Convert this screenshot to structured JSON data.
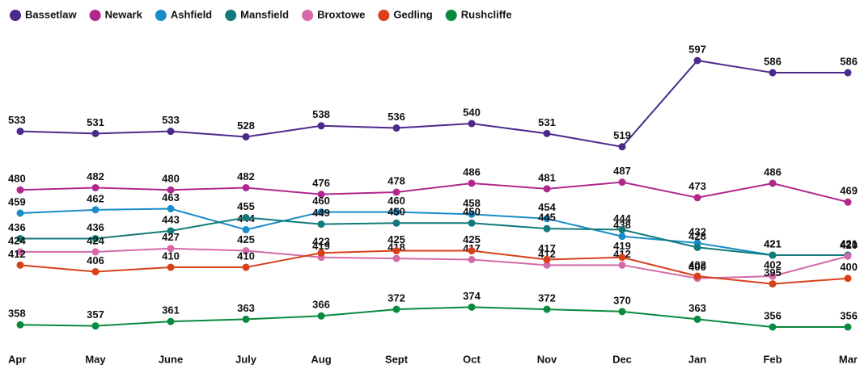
{
  "chart_data": {
    "type": "line",
    "categories": [
      "Apr",
      "May",
      "June",
      "July",
      "Aug",
      "Sept",
      "Oct",
      "Nov",
      "Dec",
      "Jan",
      "Feb",
      "Mar"
    ],
    "legend": "top-left",
    "series": [
      {
        "name": "Bassetlaw",
        "color": "#4b2a8c",
        "values": [
          533,
          531,
          533,
          528,
          538,
          536,
          540,
          531,
          519,
          597,
          586,
          586
        ]
      },
      {
        "name": "Newark",
        "color": "#b0288c",
        "values": [
          480,
          482,
          480,
          482,
          476,
          478,
          486,
          481,
          487,
          473,
          486,
          469
        ]
      },
      {
        "name": "Ashfield",
        "color": "#1a8cc8",
        "values": [
          459,
          462,
          463,
          444,
          460,
          460,
          458,
          454,
          438,
          432,
          421,
          421
        ]
      },
      {
        "name": "Mansfield",
        "color": "#127a7a",
        "values": [
          436,
          436,
          443,
          455,
          449,
          450,
          450,
          445,
          444,
          428,
          421,
          421
        ]
      },
      {
        "name": "Broxtowe",
        "color": "#d46aa8",
        "values": [
          424,
          424,
          427,
          425,
          419,
          418,
          417,
          412,
          412,
          400,
          402,
          420
        ]
      },
      {
        "name": "Gedling",
        "color": "#d8401a",
        "values": [
          412,
          406,
          410,
          410,
          423,
          425,
          425,
          417,
          419,
          402,
          395,
          400
        ]
      },
      {
        "name": "Rushcliffe",
        "color": "#0a8a3e",
        "values": [
          358,
          357,
          361,
          363,
          366,
          372,
          374,
          372,
          370,
          363,
          356,
          356
        ]
      }
    ]
  }
}
